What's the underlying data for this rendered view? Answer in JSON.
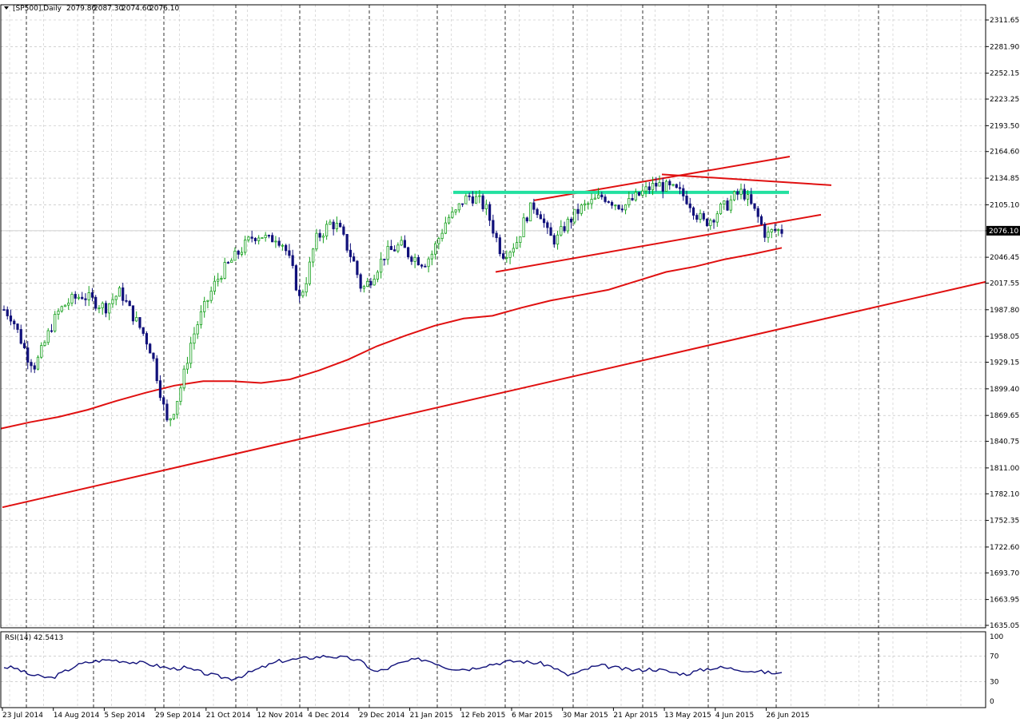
{
  "header": {
    "symbol": "[SP500],Daily",
    "open": "2079.80",
    "high": "2087.30",
    "low": "2074.60",
    "close": "2076.10"
  },
  "rsi_panel": {
    "label": "RSI(14)",
    "value": "42.5413",
    "levels": [
      "100",
      "70",
      "30",
      "0"
    ]
  },
  "price_axis": {
    "labels": [
      "2311.65",
      "2281.90",
      "2252.15",
      "2223.25",
      "2193.50",
      "2164.60",
      "2134.85",
      "2105.10",
      "2076.10",
      "2046.45",
      "2017.55",
      "1987.80",
      "1958.05",
      "1929.15",
      "1899.40",
      "1869.65",
      "1840.75",
      "1811.00",
      "1782.10",
      "1752.35",
      "1722.60",
      "1693.70",
      "1663.95",
      "1635.05"
    ],
    "current": "2076.10"
  },
  "time_axis": {
    "labels": [
      "23 Jul 2014",
      "14 Aug 2014",
      "5 Sep 2014",
      "29 Sep 2014",
      "21 Oct 2014",
      "12 Nov 2014",
      "4 Dec 2014",
      "29 Dec 2014",
      "21 Jan 2015",
      "12 Feb 2015",
      "6 Mar 2015",
      "30 Mar 2015",
      "21 Apr 2015",
      "13 May 2015",
      "4 Jun 2015",
      "26 Jun 2015"
    ]
  },
  "colors": {
    "bull": "#15a01c",
    "bear": "#10107a",
    "ma": "#e01010",
    "trend": "#e01010",
    "resistance": "#22e0a0",
    "rsi": "#10107a",
    "grid": "#b8b8b8"
  },
  "chart_data": {
    "type": "candlestick",
    "title": "[SP500],Daily",
    "ylim": [
      1635.05,
      2311.65
    ],
    "x": [
      "23 Jul 2014",
      "14 Aug 2014",
      "5 Sep 2014",
      "29 Sep 2014",
      "21 Oct 2014",
      "12 Nov 2014",
      "4 Dec 2014",
      "29 Dec 2014",
      "21 Jan 2015",
      "12 Feb 2015",
      "6 Mar 2015",
      "30 Mar 2015",
      "21 Apr 2015",
      "13 May 2015",
      "4 Jun 2015",
      "26 Jun 2015"
    ],
    "close_path": [
      1988,
      1980,
      1958,
      1936,
      1925,
      1945,
      1968,
      1985,
      1995,
      2000,
      2004,
      2000,
      1995,
      1990,
      2000,
      2008,
      1990,
      1975,
      1960,
      1940,
      1900,
      1860,
      1880,
      1910,
      1950,
      1975,
      1995,
      2015,
      2030,
      2040,
      2050,
      2060,
      2070,
      2072,
      2065,
      2070,
      2060,
      2035,
      2000,
      2025,
      2065,
      2075,
      2085,
      2080,
      2060,
      2040,
      2010,
      2020,
      2035,
      2050,
      2055,
      2060,
      2050,
      2045,
      2040,
      2050,
      2070,
      2090,
      2095,
      2110,
      2115,
      2110,
      2100,
      2075,
      2050,
      2055,
      2065,
      2090,
      2105,
      2095,
      2070,
      2065,
      2080,
      2090,
      2100,
      2105,
      2110,
      2115,
      2110,
      2105,
      2105,
      2112,
      2118,
      2124,
      2128,
      2125,
      2122,
      2118,
      2110,
      2095,
      2085,
      2090,
      2100,
      2105,
      2115,
      2120,
      2105,
      2090,
      2070,
      2077,
      2076
    ],
    "ma_200": [
      1855,
      1862,
      1868,
      1876,
      1886,
      1895,
      1903,
      1908,
      1908,
      1906,
      1910,
      1920,
      1932,
      1947,
      1959,
      1970,
      1978,
      1981,
      1990,
      1998,
      2004,
      2010,
      2020,
      2030,
      2036,
      2044,
      2050,
      2057
    ],
    "rsi_14": [
      53,
      51,
      42,
      38,
      36,
      45,
      55,
      60,
      63,
      64,
      62,
      60,
      58,
      54,
      50,
      52,
      47,
      42,
      38,
      35,
      40,
      48,
      55,
      62,
      64,
      66,
      68,
      70,
      68,
      66,
      60,
      45,
      50,
      58,
      63,
      65,
      60,
      52,
      50,
      50,
      55,
      58,
      61,
      62,
      60,
      58,
      52,
      40,
      44,
      52,
      55,
      52,
      49,
      48,
      50,
      48,
      44,
      42,
      47,
      51,
      52,
      50,
      48,
      46,
      44,
      42.5
    ],
    "rsi_current": 42.5413,
    "resistance_level": 2119
  }
}
